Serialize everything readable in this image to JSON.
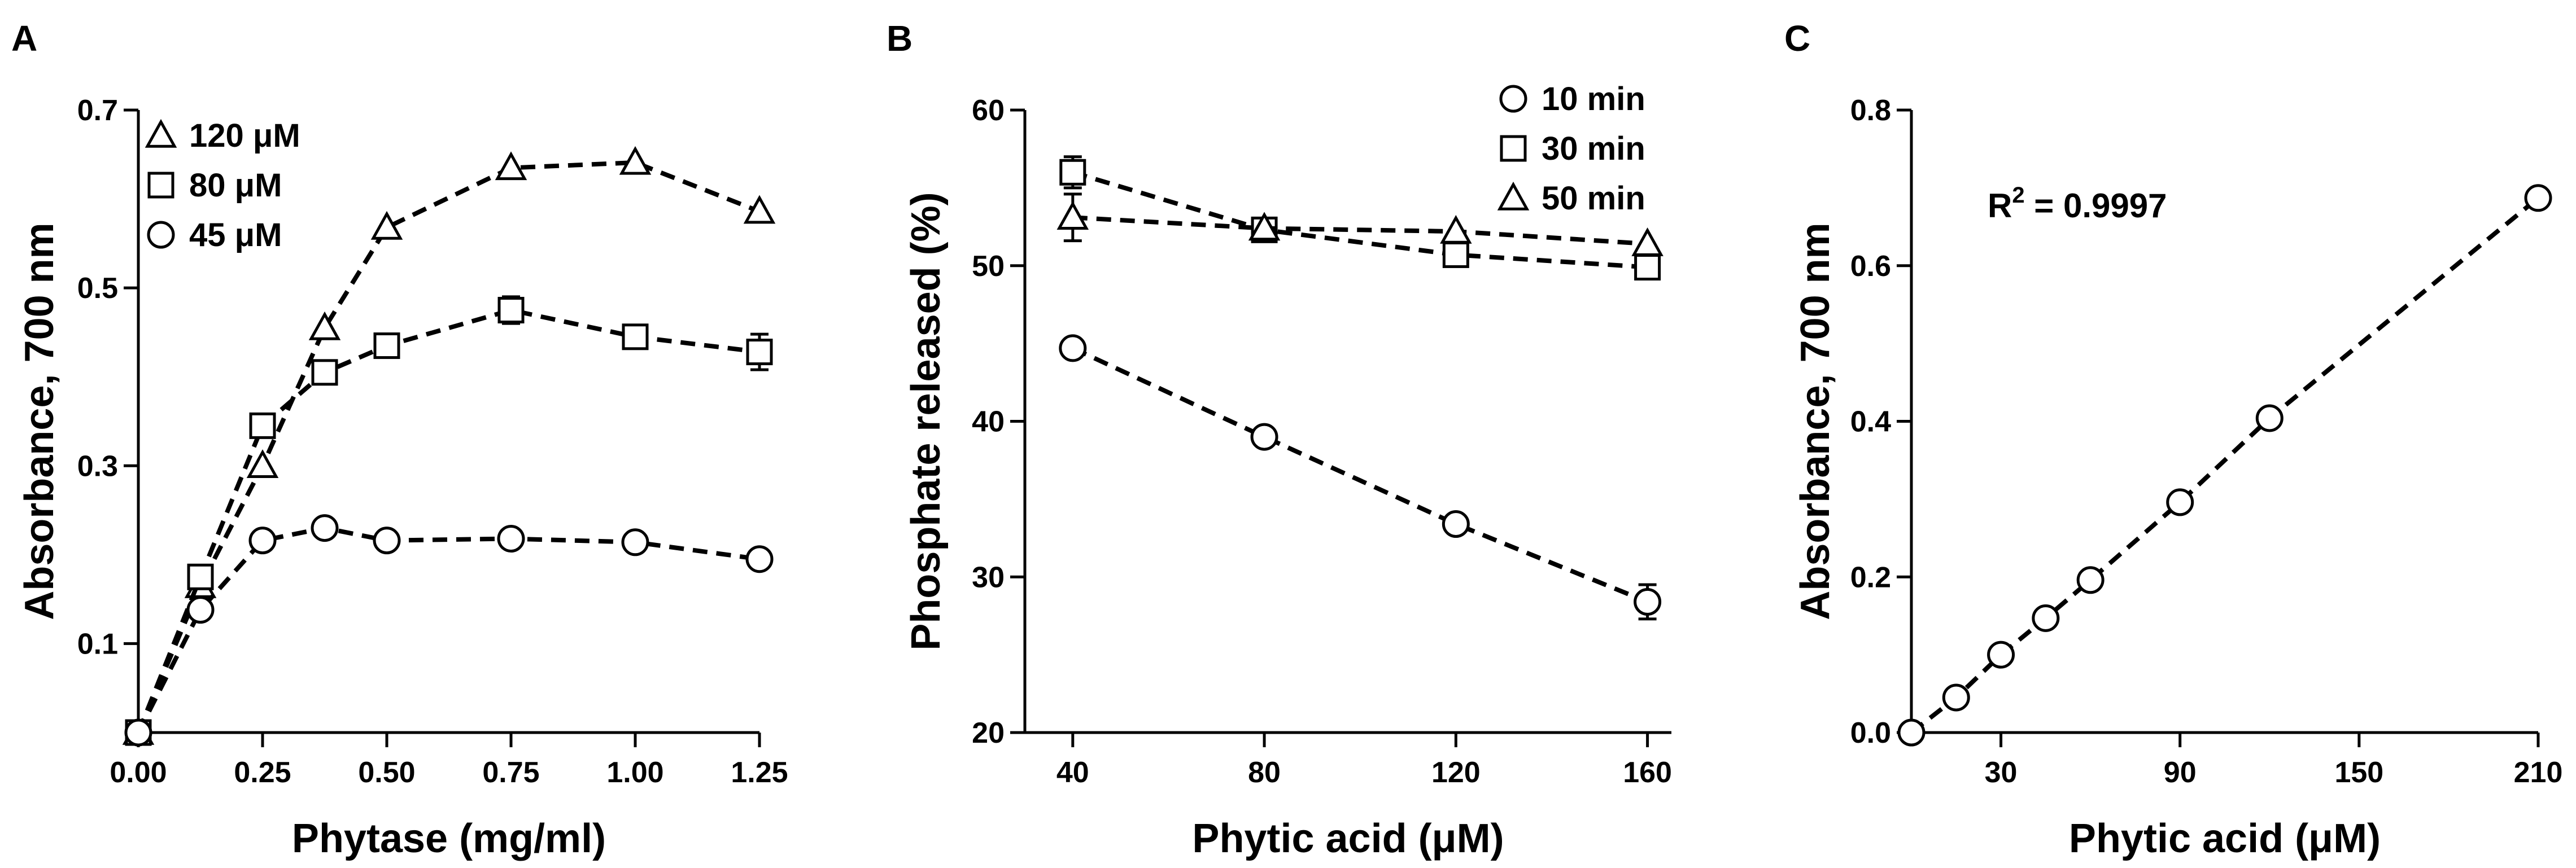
{
  "chart_data": [
    {
      "panel": "A",
      "type": "line",
      "xlabel": "Phytase (mg/ml)",
      "ylabel": "Absorbance, 700 nm",
      "xlim": [
        0,
        1.25
      ],
      "ylim": [
        0,
        0.7
      ],
      "xticks": [
        "0.00",
        "0.25",
        "0.50",
        "0.75",
        "1.00",
        "1.25"
      ],
      "xtick_values": [
        0,
        0.25,
        0.5,
        0.75,
        1.0,
        1.25
      ],
      "yticks": [
        "0.1",
        "0.3",
        "0.5",
        "0.7"
      ],
      "ytick_values": [
        0.1,
        0.3,
        0.5,
        0.7
      ],
      "legend_position": "top-left",
      "series": [
        {
          "name": "120 μM",
          "marker": "triangle",
          "x": [
            0,
            0.125,
            0.25,
            0.375,
            0.5,
            0.75,
            1.0,
            1.25
          ],
          "y": [
            0.0,
            0.165,
            0.3,
            0.455,
            0.568,
            0.635,
            0.641,
            0.586
          ]
        },
        {
          "name": "80 μM",
          "marker": "square",
          "x": [
            0,
            0.125,
            0.25,
            0.375,
            0.5,
            0.75,
            1.0,
            1.25
          ],
          "y": [
            0.0,
            0.175,
            0.345,
            0.405,
            0.435,
            0.475,
            0.445,
            0.428
          ],
          "err": [
            0,
            0,
            0,
            0,
            0,
            0.015,
            0,
            0.02
          ]
        },
        {
          "name": "45 μM",
          "marker": "circle",
          "x": [
            0,
            0.125,
            0.25,
            0.375,
            0.5,
            0.75,
            1.0,
            1.25
          ],
          "y": [
            0.0,
            0.138,
            0.216,
            0.23,
            0.216,
            0.218,
            0.214,
            0.195
          ]
        }
      ]
    },
    {
      "panel": "B",
      "type": "line",
      "xlabel": "Phytic acid (μM)",
      "ylabel": "Phosphate released (%)",
      "xlim": [
        30,
        165
      ],
      "ylim": [
        20,
        60
      ],
      "xticks": [
        "40",
        "80",
        "120",
        "160"
      ],
      "xtick_values": [
        40,
        80,
        120,
        160
      ],
      "yticks": [
        "20",
        "30",
        "40",
        "50",
        "60"
      ],
      "ytick_values": [
        20,
        30,
        40,
        50,
        60
      ],
      "legend_position": "top-right",
      "series": [
        {
          "name": "10 min",
          "marker": "circle",
          "x": [
            40,
            80,
            120,
            160
          ],
          "y": [
            44.7,
            39.0,
            33.4,
            28.4
          ],
          "err": [
            0,
            0,
            0,
            1.1
          ]
        },
        {
          "name": "30 min",
          "marker": "square",
          "x": [
            40,
            80,
            120,
            160
          ],
          "y": [
            56.0,
            52.3,
            50.7,
            49.9
          ],
          "err": [
            1.0,
            0,
            0,
            0
          ]
        },
        {
          "name": "50 min",
          "marker": "triangle",
          "x": [
            40,
            80,
            120,
            160
          ],
          "y": [
            53.1,
            52.4,
            52.2,
            51.4
          ],
          "err": [
            1.5,
            0,
            0,
            0
          ]
        }
      ]
    },
    {
      "panel": "C",
      "type": "line",
      "xlabel": "Phytic acid (μM)",
      "ylabel": "Absorbance, 700 nm",
      "xlim": [
        0,
        210
      ],
      "ylim": [
        0,
        0.8
      ],
      "xticks": [
        "30",
        "90",
        "150",
        "210"
      ],
      "xtick_values": [
        30,
        90,
        150,
        210
      ],
      "yticks": [
        "0.0",
        "0.2",
        "0.4",
        "0.6",
        "0.8"
      ],
      "ytick_values": [
        0,
        0.2,
        0.4,
        0.6,
        0.8
      ],
      "annotation": {
        "prefix": "R",
        "sup": "2",
        "suffix": " = 0.9997"
      },
      "series": [
        {
          "name": "",
          "marker": "circle",
          "x": [
            0,
            15,
            30,
            45,
            60,
            90,
            120,
            210
          ],
          "y": [
            0.0,
            0.045,
            0.1,
            0.147,
            0.196,
            0.296,
            0.404,
            0.687
          ]
        }
      ]
    }
  ]
}
